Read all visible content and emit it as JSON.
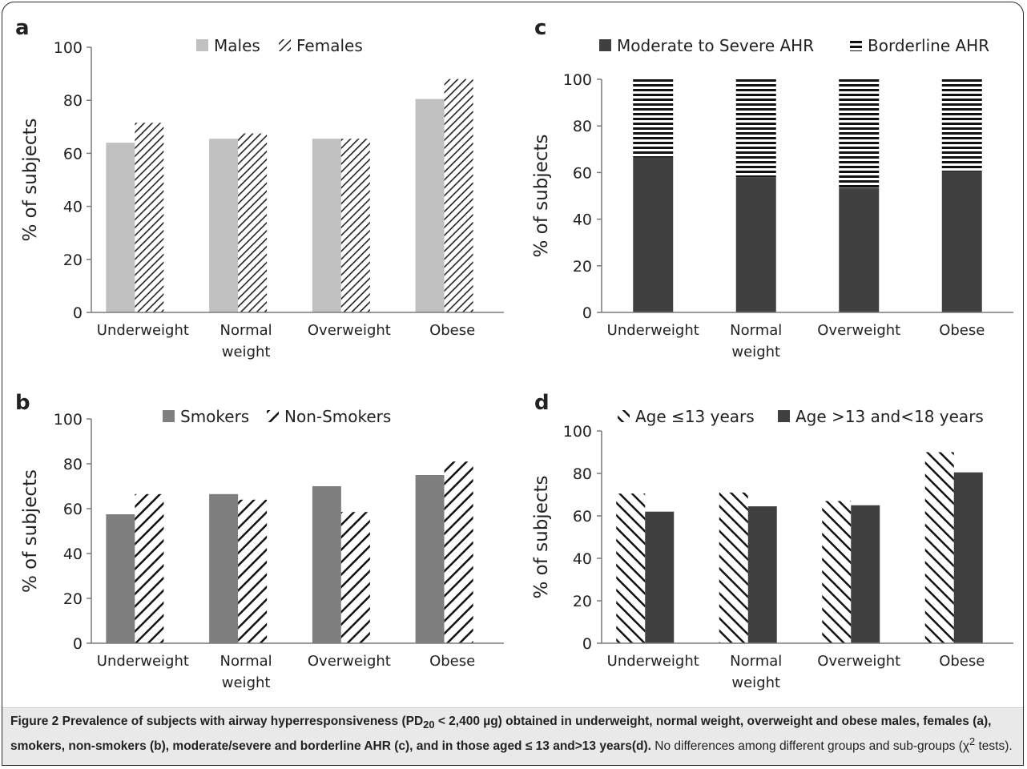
{
  "colors": {
    "light_gray": "#c0c0c0",
    "mid_gray": "#7f7f7f",
    "dark_gray": "#404040",
    "near_black": "#222222",
    "caption_bg": "#e9e9e9"
  },
  "chart_data": [
    {
      "panel": "a",
      "type": "bar",
      "ylabel": "% of subjects",
      "ylim": [
        0,
        100
      ],
      "yticks": [
        0,
        20,
        40,
        60,
        80,
        100
      ],
      "categories": [
        "Underweight",
        "Normal weight",
        "Overweight",
        "Obese"
      ],
      "category_lines": [
        [
          "Underweight"
        ],
        [
          "Normal",
          "weight"
        ],
        [
          "Overweight"
        ],
        [
          "Obese"
        ]
      ],
      "legend": "top",
      "series": [
        {
          "name": "Males",
          "style": "solid-light",
          "values": [
            64,
            65.5,
            65.5,
            80.5
          ]
        },
        {
          "name": "Females",
          "style": "diagonal-down",
          "values": [
            71.5,
            67.5,
            65.5,
            88
          ]
        }
      ]
    },
    {
      "panel": "b",
      "type": "bar",
      "ylabel": "% of subjects",
      "ylim": [
        0,
        100
      ],
      "yticks": [
        0,
        20,
        40,
        60,
        80,
        100
      ],
      "categories": [
        "Underweight",
        "Normal weight",
        "Overweight",
        "Obese"
      ],
      "category_lines": [
        [
          "Underweight"
        ],
        [
          "Normal",
          "weight"
        ],
        [
          "Overweight"
        ],
        [
          "Obese"
        ]
      ],
      "legend": "top",
      "series": [
        {
          "name": "Smokers",
          "style": "solid-mid",
          "values": [
            57.5,
            66.5,
            70,
            75
          ]
        },
        {
          "name": "Non-Smokers",
          "style": "diagonal-down-wide",
          "values": [
            66.5,
            64,
            58.5,
            81
          ]
        }
      ]
    },
    {
      "panel": "c",
      "type": "bar",
      "stacked": true,
      "ylabel": "% of subjects",
      "ylim": [
        0,
        100
      ],
      "yticks": [
        0,
        20,
        40,
        60,
        80,
        100
      ],
      "categories": [
        "Underweight",
        "Normal weight",
        "Overweight",
        "Obese"
      ],
      "category_lines": [
        [
          "Underweight"
        ],
        [
          "Normal",
          "weight"
        ],
        [
          "Overweight"
        ],
        [
          "Obese"
        ]
      ],
      "legend": "top",
      "series": [
        {
          "name": "Moderate to Severe AHR",
          "style": "solid-dark",
          "values": [
            66.5,
            58,
            53.5,
            60.5
          ]
        },
        {
          "name": "Borderline AHR",
          "style": "horizontal",
          "values": [
            33.5,
            42,
            46.5,
            39.5
          ]
        }
      ]
    },
    {
      "panel": "d",
      "type": "bar",
      "ylabel": "% of subjects",
      "ylim": [
        0,
        100
      ],
      "yticks": [
        0,
        20,
        40,
        60,
        80,
        100
      ],
      "categories": [
        "Underweight",
        "Normal weight",
        "Overweight",
        "Obese"
      ],
      "category_lines": [
        [
          "Underweight"
        ],
        [
          "Normal",
          "weight"
        ],
        [
          "Overweight"
        ],
        [
          "Obese"
        ]
      ],
      "legend": "top",
      "series": [
        {
          "name": "Age ≤13 years",
          "style": "diagonal-up",
          "values": [
            70.5,
            71,
            67,
            90
          ]
        },
        {
          "name": "Age >13 and<18 years",
          "style": "solid-dark",
          "values": [
            62,
            64.5,
            65,
            80.5
          ]
        }
      ]
    }
  ],
  "caption": {
    "label": "Figure 2",
    "bold_pre": " Prevalence of subjects with airway hyperresponsiveness (PD",
    "bold_sub": "20",
    "bold_post": " < 2,400 µg) obtained in underweight, normal weight, overweight and obese males, females (a), smokers, non-smokers (b), moderate/severe and borderline AHR (c), and in those aged ≤ 13 and>13 years(d).",
    "normal_pre": " No differences among different groups and sub-groups (χ",
    "normal_sup": "2",
    "normal_post": " tests)."
  }
}
